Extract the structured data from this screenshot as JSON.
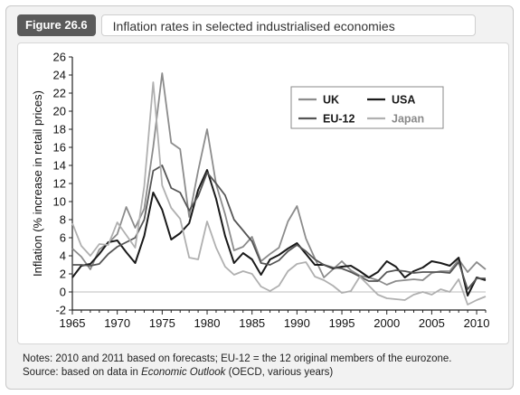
{
  "figure": {
    "label": "Figure 26.6",
    "title": "Inflation rates in selected industrialised economies"
  },
  "notes": {
    "line1": "Notes: 2010 and 2011 based on forecasts; EU-12 = the 12 original members of the eurozone.",
    "line2_prefix": "Source: based on data in ",
    "line2_source": "Economic Outlook",
    "line2_suffix": " (OECD, various years)"
  },
  "chart_data": {
    "type": "line",
    "ylabel": "Inflation (% increase in retail prices)",
    "xlabel": "",
    "xlim": [
      1965,
      2011
    ],
    "ylim": [
      -2,
      26
    ],
    "x_ticks": [
      1965,
      1970,
      1975,
      1980,
      1985,
      1990,
      1995,
      2000,
      2005,
      2010
    ],
    "y_ticks": [
      -2,
      0,
      2,
      4,
      6,
      8,
      10,
      12,
      14,
      16,
      18,
      20,
      22,
      24,
      26
    ],
    "grid": false,
    "legend_position": "top-right",
    "x": [
      1965,
      1966,
      1967,
      1968,
      1969,
      1970,
      1971,
      1972,
      1973,
      1974,
      1975,
      1976,
      1977,
      1978,
      1979,
      1980,
      1981,
      1982,
      1983,
      1984,
      1985,
      1986,
      1987,
      1988,
      1989,
      1990,
      1991,
      1992,
      1993,
      1994,
      1995,
      1996,
      1997,
      1998,
      1999,
      2000,
      2001,
      2002,
      2003,
      2004,
      2005,
      2006,
      2007,
      2008,
      2009,
      2010,
      2011
    ],
    "series": [
      {
        "name": "UK",
        "color": "#8c8c8c",
        "width": 1.8,
        "values": [
          4.8,
          3.9,
          2.5,
          4.7,
          5.4,
          6.4,
          9.4,
          7.1,
          9.2,
          16.0,
          24.2,
          16.5,
          15.8,
          8.3,
          13.4,
          18.0,
          11.9,
          8.6,
          4.6,
          5.0,
          6.1,
          3.4,
          4.2,
          4.9,
          7.8,
          9.5,
          5.9,
          3.7,
          1.6,
          2.5,
          3.4,
          2.4,
          1.8,
          1.6,
          1.3,
          0.8,
          1.2,
          1.3,
          1.4,
          1.3,
          2.1,
          2.3,
          2.3,
          3.6,
          2.2,
          3.3,
          2.5
        ]
      },
      {
        "name": "USA",
        "color": "#1a1a1a",
        "width": 2.0,
        "values": [
          1.6,
          2.9,
          3.1,
          4.2,
          5.5,
          5.7,
          4.4,
          3.2,
          6.2,
          11.0,
          9.1,
          5.8,
          6.5,
          7.6,
          11.3,
          13.5,
          10.3,
          6.2,
          3.2,
          4.3,
          3.6,
          1.9,
          3.6,
          4.1,
          4.8,
          5.4,
          4.2,
          3.0,
          3.0,
          2.6,
          2.8,
          2.9,
          2.3,
          1.6,
          2.2,
          3.4,
          2.8,
          1.6,
          2.3,
          2.7,
          3.4,
          3.2,
          2.9,
          3.8,
          -0.4,
          1.6,
          1.3
        ]
      },
      {
        "name": "EU-12",
        "color": "#555555",
        "width": 1.8,
        "values": [
          3.0,
          3.0,
          2.9,
          3.1,
          4.2,
          5.0,
          5.5,
          6.0,
          8.0,
          13.4,
          14.0,
          11.5,
          11.0,
          9.0,
          10.6,
          13.2,
          12.0,
          10.7,
          8.0,
          6.8,
          5.6,
          3.2,
          3.0,
          3.5,
          4.5,
          5.2,
          4.5,
          3.6,
          3.0,
          2.7,
          2.6,
          2.2,
          1.7,
          1.2,
          1.2,
          2.2,
          2.4,
          2.3,
          2.1,
          2.2,
          2.2,
          2.2,
          2.1,
          3.3,
          0.3,
          1.5,
          1.5
        ]
      },
      {
        "name": "Japan",
        "color": "#b0b0b0",
        "width": 1.8,
        "values": [
          7.6,
          5.1,
          4.0,
          5.3,
          5.2,
          7.7,
          6.3,
          4.9,
          11.7,
          23.2,
          11.8,
          9.3,
          8.1,
          3.8,
          3.6,
          7.8,
          4.9,
          2.8,
          1.9,
          2.3,
          2.0,
          0.6,
          0.1,
          0.7,
          2.3,
          3.1,
          3.3,
          1.7,
          1.3,
          0.7,
          -0.1,
          0.1,
          1.7,
          0.7,
          -0.3,
          -0.7,
          -0.8,
          -0.9,
          -0.3,
          0.0,
          -0.3,
          0.3,
          0.0,
          1.4,
          -1.4,
          -0.9,
          -0.5
        ]
      }
    ]
  }
}
